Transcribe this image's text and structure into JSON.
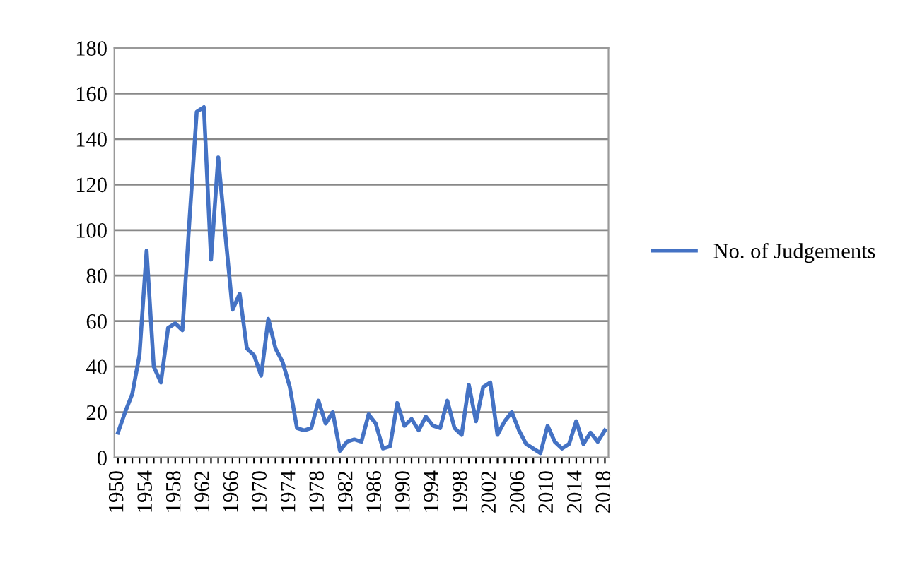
{
  "chart_data": {
    "type": "line",
    "categories": [
      "1950",
      null,
      null,
      null,
      "1954",
      null,
      null,
      null,
      "1958",
      null,
      null,
      null,
      "1962",
      null,
      null,
      null,
      "1966",
      null,
      null,
      null,
      "1970",
      null,
      null,
      null,
      "1974",
      null,
      null,
      null,
      "1978",
      null,
      null,
      null,
      "1982",
      null,
      null,
      null,
      "1986",
      null,
      null,
      null,
      "1990",
      null,
      null,
      null,
      "1994",
      null,
      null,
      null,
      "1998",
      null,
      null,
      null,
      "2002",
      null,
      null,
      null,
      "2006",
      null,
      null,
      null,
      "2010",
      null,
      null,
      null,
      "2014",
      null,
      null,
      null,
      "2018"
    ],
    "series": [
      {
        "name": "No. of Judgements",
        "color": "#4472c4",
        "values": [
          11,
          20,
          28,
          45,
          91,
          40,
          33,
          57,
          59,
          56,
          105,
          152,
          154,
          87,
          132,
          98,
          65,
          72,
          48,
          45,
          36,
          61,
          48,
          42,
          31,
          13,
          12,
          13,
          25,
          15,
          20,
          3,
          7,
          8,
          7,
          19,
          15,
          4,
          5,
          24,
          14,
          17,
          12,
          18,
          14,
          13,
          25,
          13,
          10,
          32,
          16,
          31,
          33,
          10,
          16,
          20,
          12,
          6,
          4,
          2,
          14,
          7,
          4,
          6,
          16,
          6,
          11,
          7,
          12
        ]
      }
    ],
    "ylim": [
      0,
      180
    ],
    "yticks": [
      0,
      20,
      40,
      60,
      80,
      100,
      120,
      140,
      160,
      180
    ],
    "grid": "y",
    "legend": "right",
    "marker": "none",
    "line_style": "solid"
  }
}
